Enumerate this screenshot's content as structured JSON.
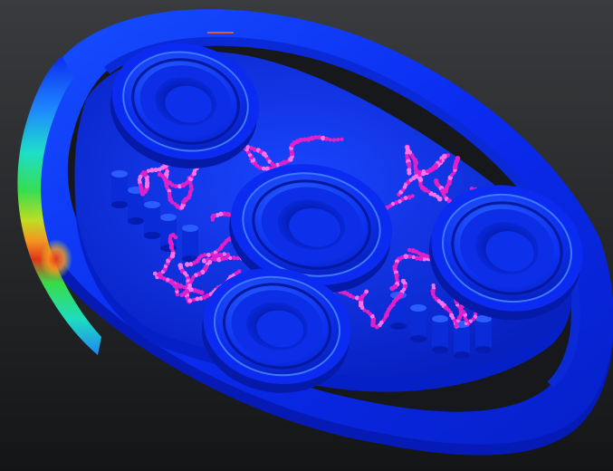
{
  "scene": {
    "background_top": "#3a3b3e",
    "background_bottom": "#141517",
    "base_blue": "#0a2bf0",
    "deep_blue": "#041aa8",
    "light_blue": "#3a6cff",
    "stress_colors": [
      "#0a2bf0",
      "#1f8cff",
      "#1ee6c8",
      "#39e64a",
      "#c8e61e",
      "#ff9a1e",
      "#e8361a"
    ],
    "contact_marker_color": "#e020c8",
    "contact_marker_light": "#ff70ee",
    "indicator_color": "#e05a3a",
    "bearing_count": 4,
    "contact_regions": 4
  }
}
